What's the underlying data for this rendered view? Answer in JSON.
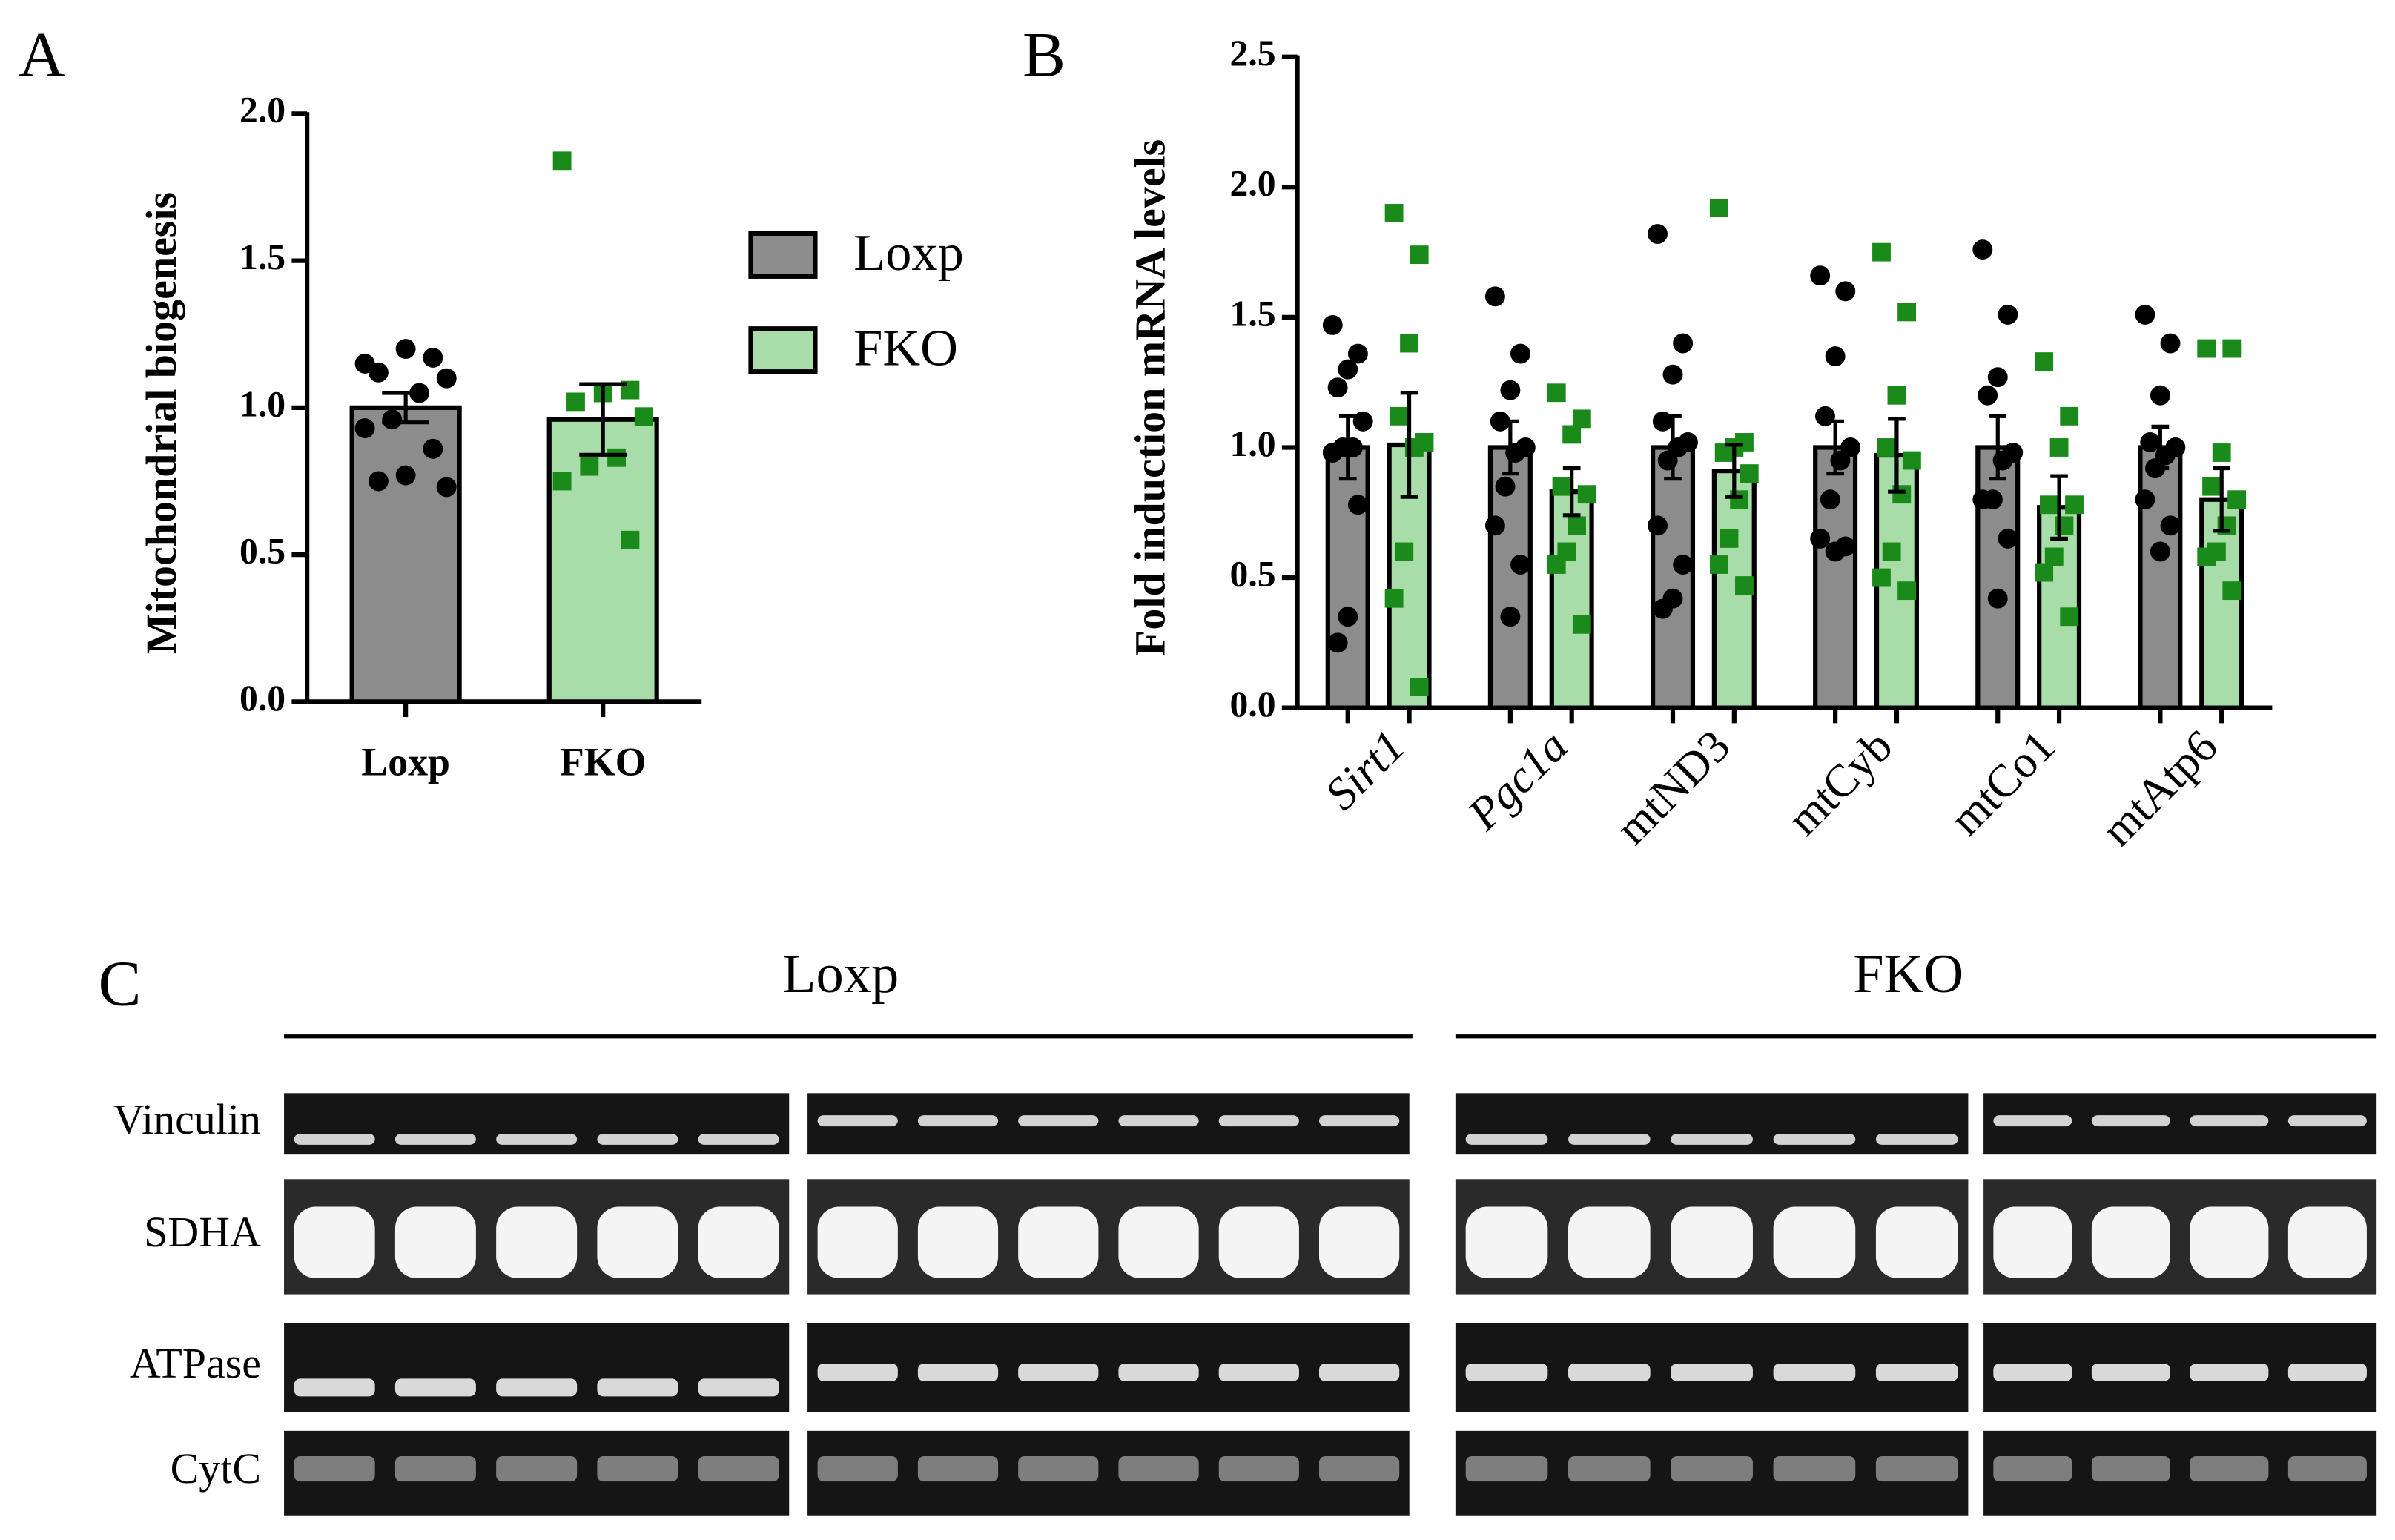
{
  "panels": {
    "a": "A",
    "b": "B",
    "c": "C"
  },
  "chart_data": [
    {
      "type": "bar",
      "ylabel": "Mitochondrial biogenesis",
      "categories": [
        "Loxp",
        "FKO"
      ],
      "values": [
        1.0,
        0.96
      ],
      "errors": [
        0.05,
        0.12
      ],
      "colors": [
        "#8c8c8c",
        "#a8dca8"
      ],
      "point_colors": [
        "#000000",
        "#1a8a1a"
      ],
      "point_markers": [
        "circle",
        "square"
      ],
      "points": [
        [
          1.15,
          1.17,
          1.2,
          1.12,
          1.1,
          1.05,
          0.96,
          0.93,
          0.86,
          0.77,
          0.75,
          0.73
        ],
        [
          1.84,
          1.06,
          1.05,
          1.02,
          0.97,
          0.83,
          0.8,
          0.75,
          0.55
        ]
      ],
      "ylim": [
        0,
        2
      ],
      "yticks": [
        {
          "value": 0,
          "label": "0.0"
        },
        {
          "value": 0.5,
          "label": "0.5"
        },
        {
          "value": 1,
          "label": "1.0"
        },
        {
          "value": 1.5,
          "label": "1.5"
        },
        {
          "value": 2,
          "label": "2.0"
        }
      ],
      "legend": {
        "position": "right",
        "entries": [
          {
            "label": "Loxp",
            "color": "#8c8c8c"
          },
          {
            "label": "FKO",
            "color": "#a8dca8"
          }
        ]
      }
    },
    {
      "type": "bar",
      "ylabel": "Fold induction mRNA levels",
      "categories": [
        "Sirt1",
        "Pgc1a",
        "mtND3",
        "mtCyb",
        "mtCo1",
        "mtAtp6"
      ],
      "category_italic": [
        true,
        true,
        false,
        false,
        false,
        false
      ],
      "label_rotation": -45,
      "series": [
        {
          "color": "#8c8c8c",
          "point_color": "#000000",
          "point_marker": "circle",
          "values": [
            1.0,
            1.0,
            1.0,
            1.0,
            1.0,
            1.0
          ],
          "errors": [
            0.12,
            0.1,
            0.12,
            0.1,
            0.12,
            0.08
          ],
          "points": [
            [
              1.47,
              1.36,
              1.3,
              1.23,
              1.1,
              1.0,
              1.0,
              0.98,
              0.78,
              0.35,
              0.25
            ],
            [
              1.58,
              1.36,
              1.22,
              1.1,
              1.0,
              0.98,
              0.85,
              0.7,
              0.55,
              0.35
            ],
            [
              1.82,
              1.4,
              1.28,
              1.1,
              1.02,
              1.0,
              0.95,
              0.7,
              0.55,
              0.42,
              0.38
            ],
            [
              1.66,
              1.6,
              1.35,
              1.12,
              1.0,
              0.95,
              0.8,
              0.65,
              0.62,
              0.6
            ],
            [
              1.76,
              1.51,
              1.27,
              1.2,
              0.98,
              0.95,
              0.8,
              0.8,
              0.65,
              0.42
            ],
            [
              1.51,
              1.4,
              1.2,
              1.02,
              1.0,
              0.97,
              0.92,
              0.8,
              0.7,
              0.6
            ]
          ]
        },
        {
          "color": "#a8dca8",
          "point_color": "#1a8a1a",
          "point_marker": "square",
          "values": [
            1.01,
            0.83,
            0.91,
            0.97,
            0.77,
            0.8
          ],
          "errors": [
            0.2,
            0.09,
            0.1,
            0.14,
            0.12,
            0.12
          ],
          "points": [
            [
              1.9,
              1.74,
              1.4,
              1.12,
              1.02,
              1.0,
              0.6,
              0.42,
              0.08
            ],
            [
              1.21,
              1.11,
              1.05,
              0.85,
              0.82,
              0.7,
              0.6,
              0.55,
              0.32
            ],
            [
              1.92,
              1.02,
              1.0,
              0.98,
              0.9,
              0.8,
              0.65,
              0.55,
              0.47
            ],
            [
              1.75,
              1.52,
              1.2,
              1.0,
              0.95,
              0.82,
              0.6,
              0.5,
              0.45
            ],
            [
              1.33,
              1.12,
              1.0,
              0.78,
              0.78,
              0.7,
              0.58,
              0.52,
              0.35
            ],
            [
              1.38,
              1.38,
              0.98,
              0.85,
              0.8,
              0.7,
              0.6,
              0.58,
              0.45
            ]
          ]
        }
      ],
      "ylim": [
        0,
        2.5
      ],
      "yticks": [
        {
          "value": 0,
          "label": "0.0"
        },
        {
          "value": 0.5,
          "label": "0.5"
        },
        {
          "value": 1,
          "label": "1.0"
        },
        {
          "value": 1.5,
          "label": "1.5"
        },
        {
          "value": 2,
          "label": "2.0"
        },
        {
          "value": 2.5,
          "label": "2.5"
        }
      ]
    }
  ],
  "blot": {
    "groups": [
      "Loxp",
      "FKO"
    ],
    "rows": [
      "Vinculin",
      "SDHA",
      "ATPase",
      "CytC"
    ]
  }
}
